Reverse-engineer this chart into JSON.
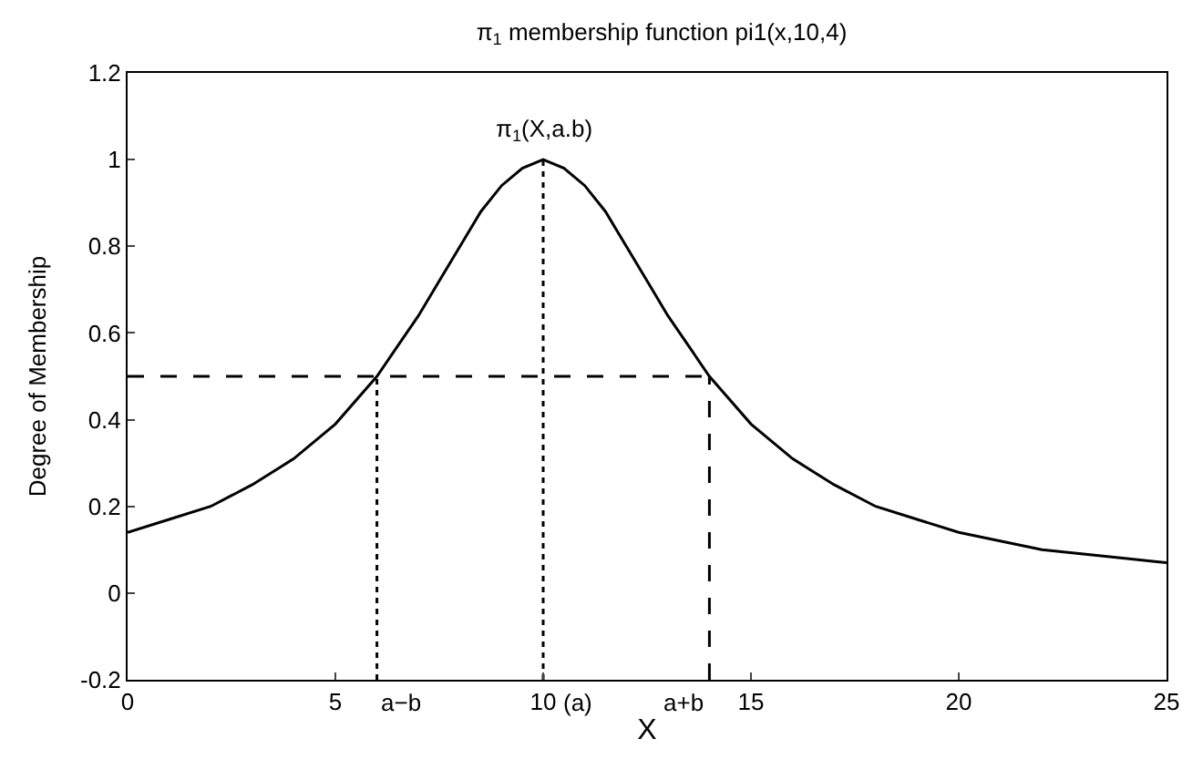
{
  "chart_data": {
    "type": "line",
    "title": "π$_{1}$ membership function pi1(x,10,4)",
    "xlabel": "X",
    "ylabel": "Degree of Membership",
    "xlim": [
      0,
      25
    ],
    "xticks": [
      0,
      5,
      10,
      15,
      20,
      25
    ],
    "ylim": [
      -0.2,
      1.2
    ],
    "yticks": [
      -0.2,
      0,
      0.2,
      0.4,
      0.6,
      0.8,
      1,
      1.2
    ],
    "marker": "none",
    "annotations": [
      {
        "text": "π$_{1}$(X,a.b)",
        "x": 10,
        "y": 1
      },
      {
        "text": "a−b",
        "x": 6,
        "y": -0.2
      },
      {
        "text": "(a)",
        "x": 10,
        "y": -0.2
      },
      {
        "text": "a+b",
        "x": 14,
        "y": -0.2
      }
    ],
    "series": [
      {
        "color": "#000000",
        "line_style": "solid",
        "x": [
          0,
          1,
          2,
          3,
          4,
          5,
          6,
          6.5,
          7,
          7.5,
          8,
          8.5,
          9,
          9.5,
          10,
          10.5,
          11,
          11.5,
          12,
          12.5,
          13,
          13.5,
          14,
          15,
          16,
          17,
          18,
          19,
          20,
          21,
          22,
          23,
          24,
          25
        ],
        "values": [
          0.14,
          0.17,
          0.2,
          0.25,
          0.31,
          0.39,
          0.5,
          0.57,
          0.64,
          0.72,
          0.8,
          0.88,
          0.94,
          0.98,
          1,
          0.98,
          0.94,
          0.88,
          0.8,
          0.72,
          0.64,
          0.57,
          0.5,
          0.39,
          0.31,
          0.25,
          0.2,
          0.17,
          0.14,
          0.12,
          0.1,
          0.09,
          0.08,
          0.07
        ]
      },
      {
        "color": "#000000",
        "line_style": "dashed",
        "x": [
          0,
          14
        ],
        "values": [
          0.5,
          0.5
        ]
      },
      {
        "color": "#000000",
        "line_style": "dotted",
        "x": [
          6,
          6
        ],
        "values": [
          -0.2,
          0.5
        ]
      },
      {
        "color": "#000000",
        "line_style": "dotted",
        "x": [
          10,
          10
        ],
        "values": [
          -0.2,
          1
        ]
      },
      {
        "color": "#000000",
        "line_style": "dashed",
        "x": [
          14,
          14
        ],
        "values": [
          -0.2,
          0.5
        ]
      }
    ]
  }
}
